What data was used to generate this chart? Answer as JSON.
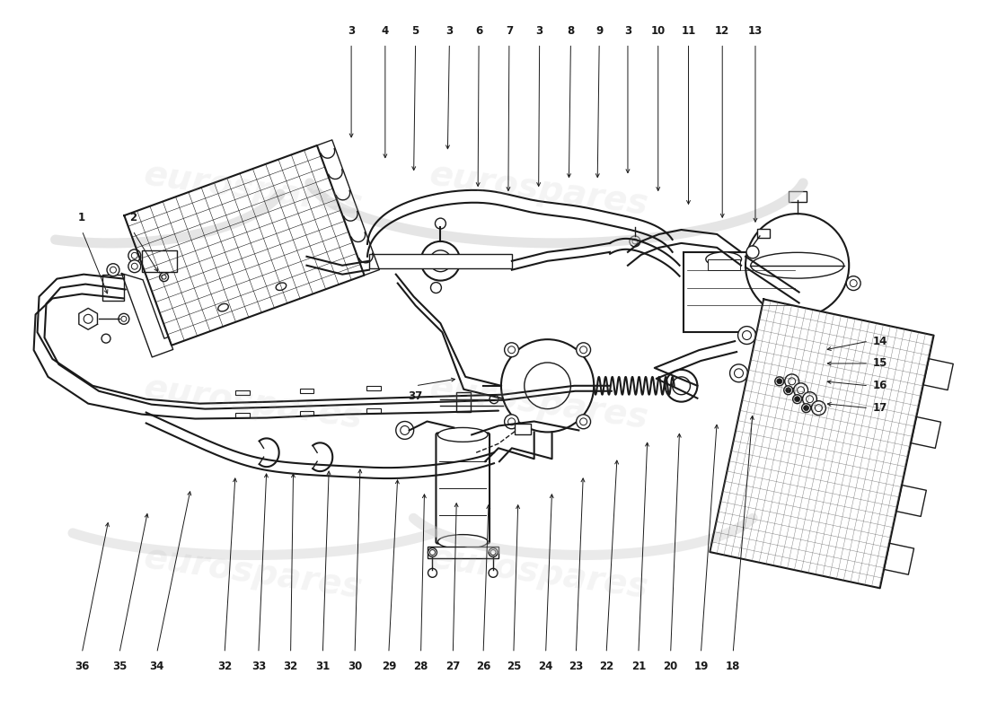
{
  "bg_color": "#ffffff",
  "line_color": "#1a1a1a",
  "fig_width": 11.0,
  "fig_height": 8.0,
  "dpi": 100,
  "top_labels": [
    [
      "3",
      390,
      38,
      390,
      155
    ],
    [
      "4",
      428,
      38,
      428,
      178
    ],
    [
      "5",
      462,
      38,
      460,
      192
    ],
    [
      "3",
      500,
      38,
      498,
      168
    ],
    [
      "6",
      533,
      38,
      532,
      210
    ],
    [
      "7",
      567,
      38,
      566,
      215
    ],
    [
      "3",
      601,
      38,
      600,
      210
    ],
    [
      "8",
      636,
      38,
      634,
      200
    ],
    [
      "9",
      668,
      38,
      666,
      200
    ],
    [
      "3",
      700,
      38,
      700,
      195
    ],
    [
      "10",
      734,
      38,
      734,
      215
    ],
    [
      "11",
      768,
      38,
      768,
      230
    ],
    [
      "12",
      806,
      38,
      806,
      245
    ],
    [
      "13",
      843,
      38,
      843,
      250
    ]
  ],
  "left_labels": [
    [
      "1",
      88,
      248,
      118,
      330
    ],
    [
      "2",
      145,
      248,
      175,
      305
    ]
  ],
  "right_labels": [
    [
      "14",
      975,
      380,
      920,
      390
    ],
    [
      "15",
      975,
      405,
      920,
      405
    ],
    [
      "16",
      975,
      430,
      920,
      425
    ],
    [
      "17",
      975,
      455,
      920,
      450
    ]
  ],
  "bottom_labels": [
    [
      "36",
      88,
      738,
      118,
      580
    ],
    [
      "35",
      130,
      738,
      162,
      570
    ],
    [
      "34",
      172,
      738,
      210,
      545
    ],
    [
      "32",
      248,
      738,
      260,
      530
    ],
    [
      "33",
      286,
      738,
      295,
      525
    ],
    [
      "32",
      322,
      738,
      325,
      525
    ],
    [
      "31",
      358,
      738,
      365,
      522
    ],
    [
      "30",
      394,
      738,
      400,
      520
    ],
    [
      "29",
      432,
      738,
      442,
      532
    ],
    [
      "28",
      468,
      738,
      472,
      548
    ],
    [
      "27",
      504,
      738,
      508,
      558
    ],
    [
      "26",
      538,
      738,
      544,
      560
    ],
    [
      "25",
      572,
      738,
      577,
      560
    ],
    [
      "24",
      608,
      738,
      615,
      548
    ],
    [
      "23",
      642,
      738,
      650,
      530
    ],
    [
      "22",
      676,
      738,
      688,
      510
    ],
    [
      "21",
      712,
      738,
      722,
      490
    ],
    [
      "20",
      748,
      738,
      758,
      480
    ],
    [
      "19",
      782,
      738,
      800,
      470
    ],
    [
      "18",
      818,
      738,
      840,
      460
    ]
  ],
  "label_37": [
    462,
    435,
    510,
    422
  ]
}
